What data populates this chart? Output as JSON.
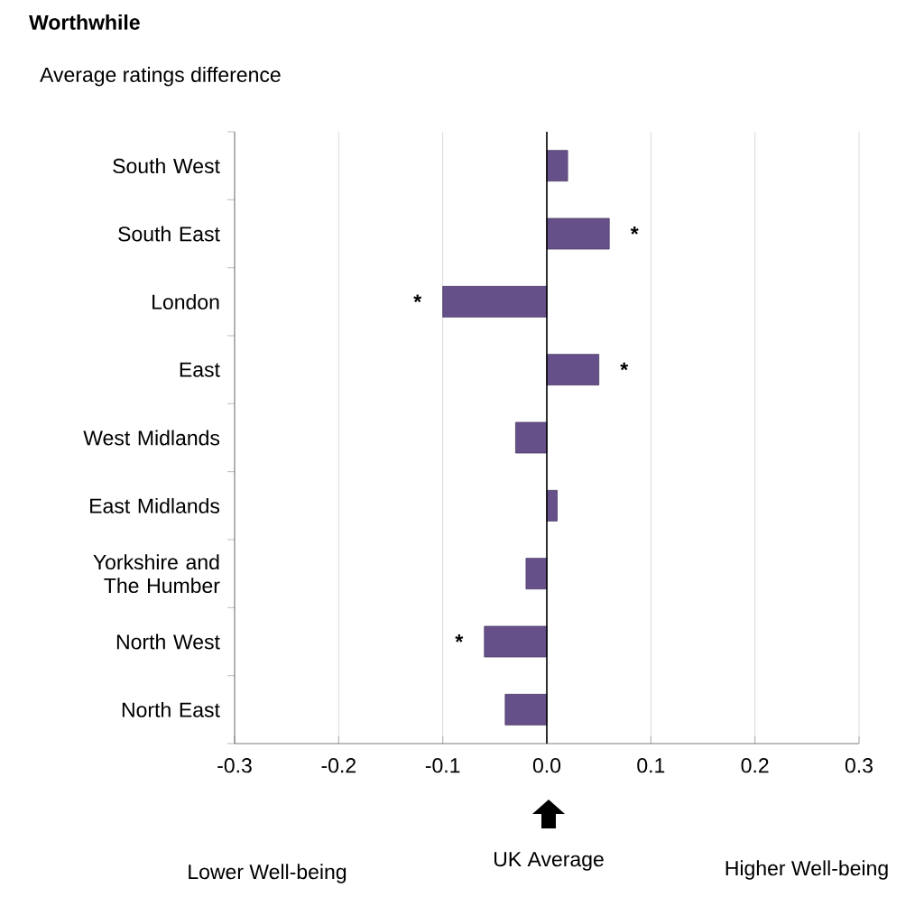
{
  "chart_data": {
    "type": "bar",
    "orientation": "horizontal",
    "title": "Worthwhile",
    "subtitle": "Average ratings  difference",
    "categories": [
      "South West",
      "South East",
      "London",
      "East",
      "West Midlands",
      "East Midlands",
      "Yorkshire and The Humber",
      "North West",
      "North East"
    ],
    "values": [
      0.02,
      0.06,
      -0.1,
      0.05,
      -0.03,
      0.01,
      -0.02,
      -0.06,
      -0.04
    ],
    "color": "#66508a",
    "xlim": [
      -0.3,
      0.3
    ],
    "xticks": [
      {
        "value": -0.3,
        "label": "-0.3"
      },
      {
        "value": -0.2,
        "label": "-0.2"
      },
      {
        "value": -0.1,
        "label": "-0.1"
      },
      {
        "value": 0,
        "label": "0.0"
      },
      {
        "value": 0.1,
        "label": "0.1"
      },
      {
        "value": 0.2,
        "label": "0.2"
      },
      {
        "value": 0.3,
        "label": "0.3"
      }
    ],
    "grid": "x",
    "annotations": [
      {
        "text": "*",
        "x": 0.06,
        "y": "South East"
      },
      {
        "text": "*",
        "x": -0.1,
        "y": "London"
      },
      {
        "text": "*",
        "x": 0.05,
        "y": "East"
      },
      {
        "text": "*",
        "x": -0.06,
        "y": "North West"
      },
      "Lower Well-being",
      "UK Average",
      "Higher Well-being"
    ]
  }
}
